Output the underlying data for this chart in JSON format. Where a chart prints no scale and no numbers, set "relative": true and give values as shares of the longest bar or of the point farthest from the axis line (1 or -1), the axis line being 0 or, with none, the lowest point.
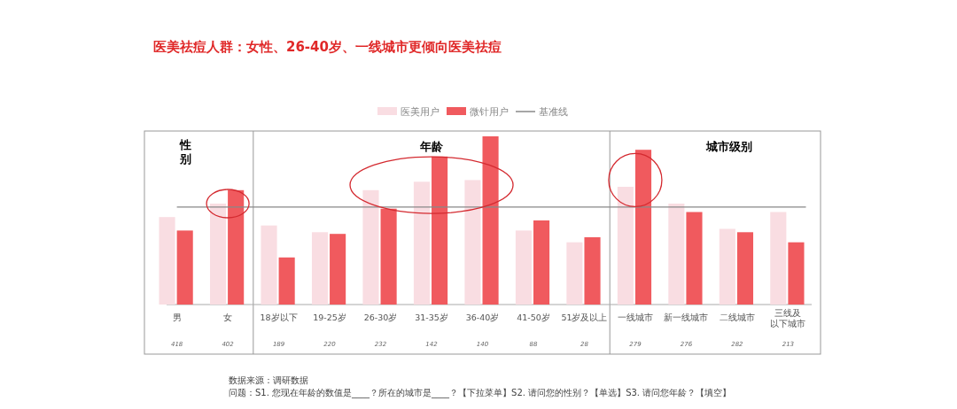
{
  "chart_data": {
    "type": "bar",
    "title": "医美祛痘人群：女性、26-40岁、一线城市更倾向医美祛痘",
    "relative": true,
    "legend": "top",
    "categories": [
      "男",
      "女",
      "18岁以下",
      "19-25岁",
      "26-30岁",
      "31-35岁",
      "36-40岁",
      "41-50岁",
      "51岁及以上",
      "一线城市",
      "新一线城市",
      "二线城市",
      "三线及以下城市"
    ],
    "series": [
      {
        "name": "医美用户",
        "color": "#f9dde2",
        "values": [
          0.52,
          0.6,
          0.47,
          0.43,
          0.68,
          0.73,
          0.74,
          0.44,
          0.37,
          0.7,
          0.6,
          0.45,
          0.55
        ]
      },
      {
        "name": "微针用户",
        "color": "#f05a5e",
        "values": [
          0.44,
          0.68,
          0.28,
          0.42,
          0.57,
          0.88,
          1,
          0.5,
          0.4,
          0.92,
          0.55,
          0.43,
          0.37
        ]
      }
    ],
    "ref_lines": [
      {
        "axis": "y",
        "value": 0.58,
        "label": "基准线",
        "color": "#888888"
      }
    ],
    "annotations": [
      "性别",
      "年龄",
      "城市级别",
      "418",
      "402",
      "189",
      "220",
      "232",
      "142",
      "140",
      "88",
      "28",
      "279",
      "276",
      "282",
      "213",
      "数据来源：调研数据",
      "问题：S1. 您现在年龄的数值是____？所在的城市是____？【下拉菜单】S2. 请问您的性别？【单选】S3. 请问您年龄？【填空】"
    ]
  }
}
